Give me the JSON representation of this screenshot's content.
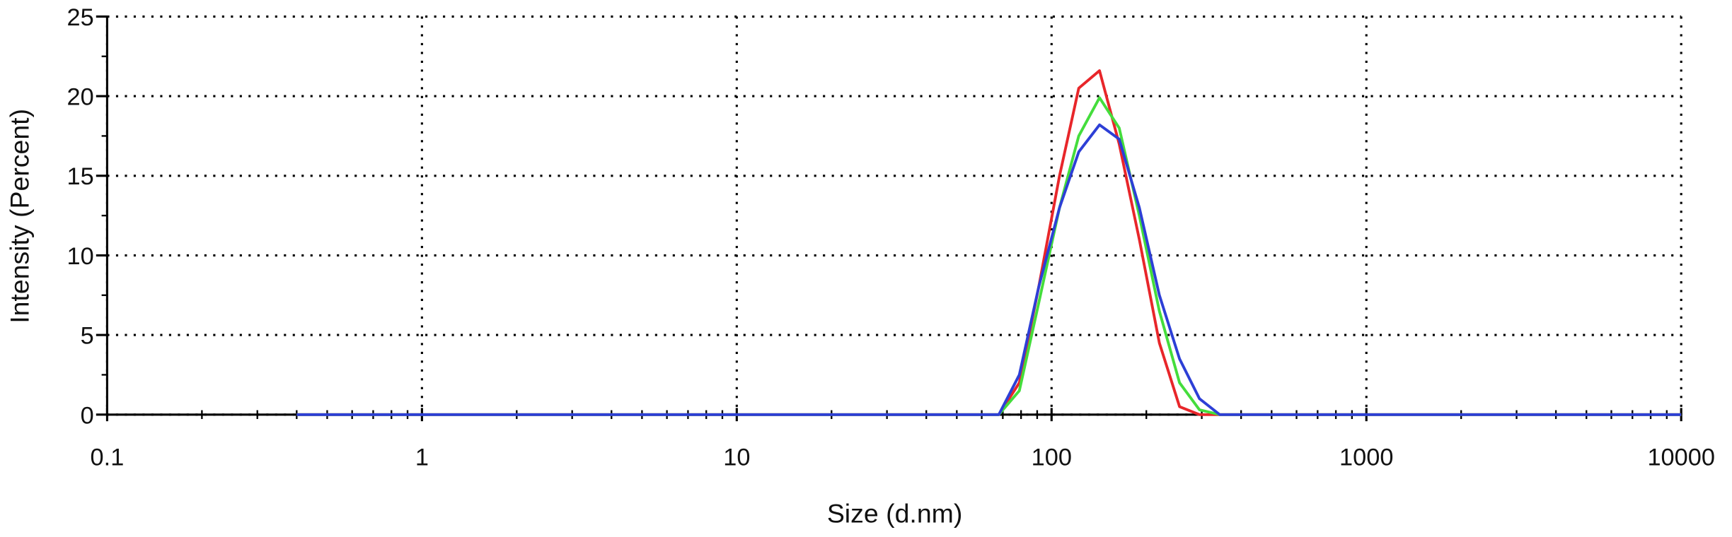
{
  "chart_data": {
    "type": "line",
    "xlabel": "Size (d.nm)",
    "ylabel": "Intensity (Percent)",
    "log_x": true,
    "grid": true,
    "xlim": [
      0.1,
      10000
    ],
    "xticks": [
      0.1,
      1,
      10,
      100,
      1000,
      10000
    ],
    "ylim": [
      0,
      25
    ],
    "yticks": [
      0,
      5,
      10,
      15,
      20,
      25
    ],
    "x": [
      0.4,
      68,
      79,
      91,
      106,
      122,
      142,
      164,
      190,
      220,
      255,
      295,
      342,
      10000
    ],
    "series": [
      {
        "color": "#e8262a",
        "values": [
          0,
          0,
          2,
          8,
          15,
          20.5,
          21.6,
          17,
          11,
          4.5,
          0.5,
          0,
          0,
          0
        ]
      },
      {
        "color": "#44dd3c",
        "values": [
          0,
          0,
          1.5,
          7,
          13,
          17.5,
          19.9,
          18,
          12.5,
          6.5,
          2,
          0.3,
          0,
          0
        ]
      },
      {
        "color": "#2d3fd6",
        "values": [
          0,
          0,
          2.5,
          8,
          13,
          16.5,
          18.2,
          17.3,
          13,
          7.5,
          3.5,
          1,
          0,
          0
        ]
      }
    ]
  }
}
